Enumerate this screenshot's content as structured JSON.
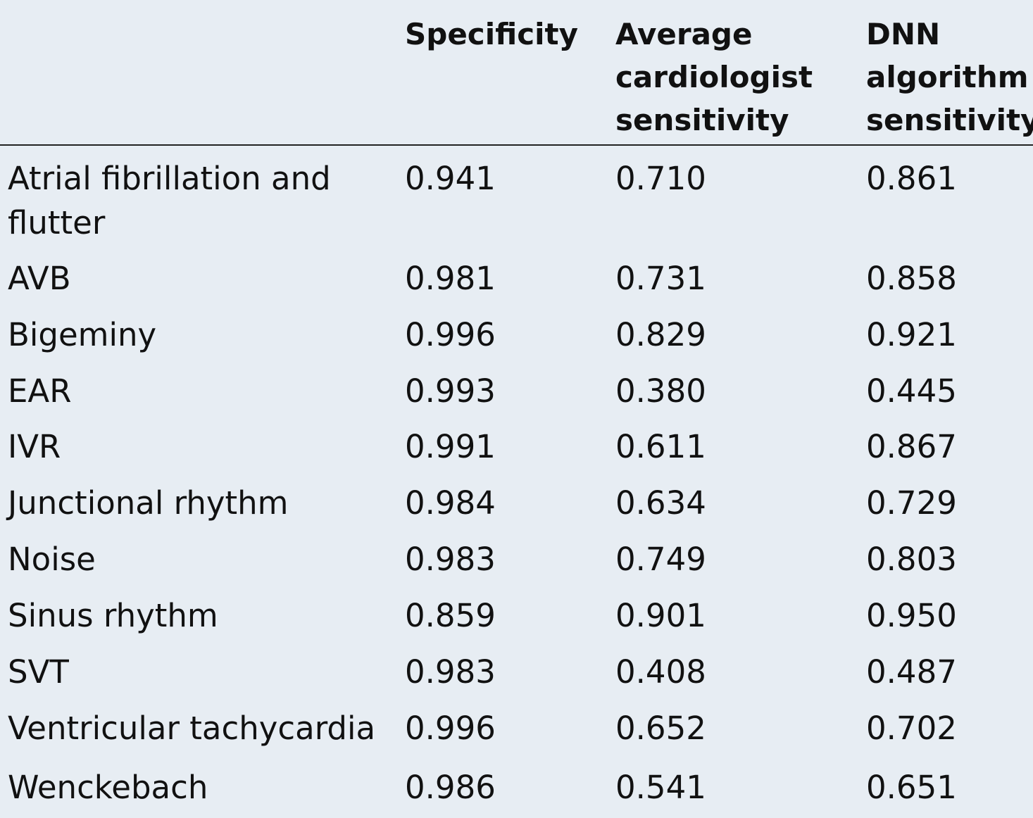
{
  "table": {
    "headers": [
      {
        "lines": []
      },
      {
        "lines": [
          "Specificity"
        ]
      },
      {
        "lines": [
          "Average",
          "cardiologist",
          "sensitivity"
        ]
      },
      {
        "lines": [
          "DNN",
          "algorithm",
          "sensitivity"
        ]
      }
    ],
    "rows": [
      {
        "label": "Atrial fibrillation and flutter",
        "specificity": "0.941",
        "cardiologist": "0.710",
        "dnn": "0.861"
      },
      {
        "label": "AVB",
        "specificity": "0.981",
        "cardiologist": "0.731",
        "dnn": "0.858"
      },
      {
        "label": "Bigeminy",
        "specificity": "0.996",
        "cardiologist": "0.829",
        "dnn": "0.921"
      },
      {
        "label": "EAR",
        "specificity": "0.993",
        "cardiologist": "0.380",
        "dnn": "0.445"
      },
      {
        "label": "IVR",
        "specificity": "0.991",
        "cardiologist": "0.611",
        "dnn": "0.867"
      },
      {
        "label": "Junctional rhythm",
        "specificity": "0.984",
        "cardiologist": "0.634",
        "dnn": "0.729"
      },
      {
        "label": "Noise",
        "specificity": "0.983",
        "cardiologist": "0.749",
        "dnn": "0.803"
      },
      {
        "label": "Sinus rhythm",
        "specificity": "0.859",
        "cardiologist": "0.901",
        "dnn": "0.950"
      },
      {
        "label": "SVT",
        "specificity": "0.983",
        "cardiologist": "0.408",
        "dnn": "0.487"
      },
      {
        "label": "Ventricular tachycardia",
        "specificity": "0.996",
        "cardiologist": "0.652",
        "dnn": "0.702"
      },
      {
        "label": "Wenckebach",
        "specificity": "0.986",
        "cardiologist": "0.541",
        "dnn": "0.651"
      }
    ]
  }
}
